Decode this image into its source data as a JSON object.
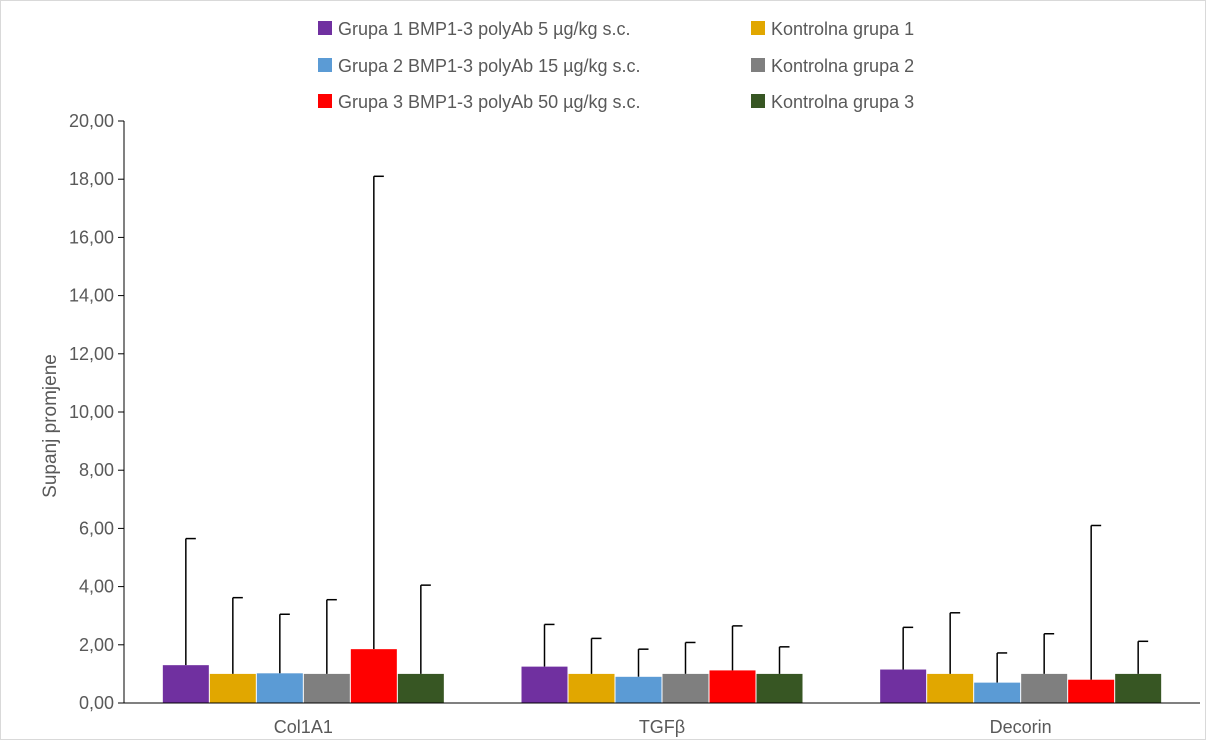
{
  "chart_data": {
    "type": "bar",
    "categories": [
      "Col1A1",
      "TGFβ",
      "Decorin"
    ],
    "ylabel": "Supanj promjene",
    "ylim": [
      0,
      20
    ],
    "ytick_step": 2,
    "ytick_labels": [
      "0,00",
      "2,00",
      "4,00",
      "6,00",
      "8,00",
      "10,00",
      "12,00",
      "14,00",
      "16,00",
      "18,00",
      "20,00"
    ],
    "grid": false,
    "legend_position": "top",
    "series": [
      {
        "name": "Grupa 1 BMP1-3 polyAb 5 µg/kg s.c.",
        "color": "#7030a0",
        "values": [
          1.3,
          1.25,
          1.15
        ],
        "err_upper": [
          5.65,
          2.7,
          2.6
        ]
      },
      {
        "name": "Kontrolna grupa 1",
        "color": "#e1a700",
        "values": [
          1.0,
          1.0,
          1.0
        ],
        "err_upper": [
          3.62,
          2.22,
          3.1
        ]
      },
      {
        "name": "Grupa 2 BMP1-3 polyAb 15 µg/kg s.c.",
        "color": "#5b9bd5",
        "values": [
          1.02,
          0.9,
          0.7
        ],
        "err_upper": [
          3.05,
          1.85,
          1.72
        ]
      },
      {
        "name": "Kontrolna grupa 2",
        "color": "#7f7f7f",
        "values": [
          1.0,
          1.0,
          1.0
        ],
        "err_upper": [
          3.55,
          2.08,
          2.38
        ]
      },
      {
        "name": "Grupa 3 BMP1-3 polyAb 50 µg/kg s.c.",
        "color": "#ff0000",
        "values": [
          1.85,
          1.12,
          0.8
        ],
        "err_upper": [
          18.1,
          2.65,
          6.1
        ]
      },
      {
        "name": "Kontrolna grupa 3",
        "color": "#375623",
        "values": [
          1.0,
          1.0,
          1.0
        ],
        "err_upper": [
          4.05,
          1.93,
          2.12
        ]
      }
    ]
  }
}
